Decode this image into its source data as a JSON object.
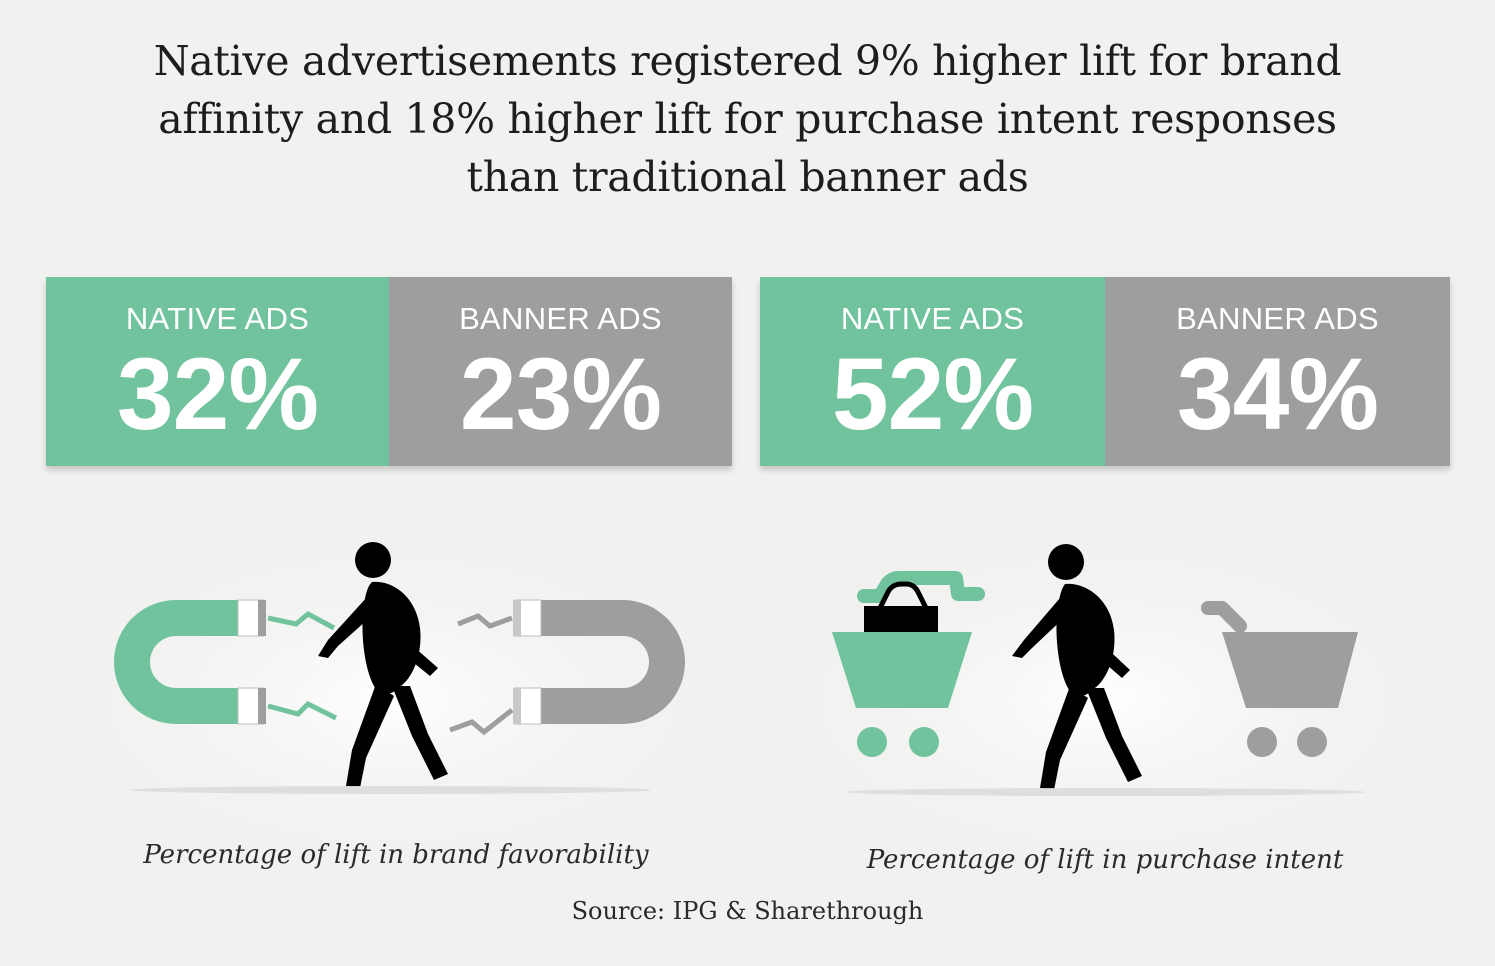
{
  "title": "Native advertisements registered 9% higher lift for brand affinity and 18% higher lift for purchase intent responses than traditional banner ads",
  "colors": {
    "native": "#71c39e",
    "banner": "#9d9e9e",
    "figure": "#000000"
  },
  "chart_data": [
    {
      "type": "table",
      "caption": "Percentage of lift in brand favorability",
      "categories": [
        "NATIVE ADS",
        "BANNER ADS"
      ],
      "values": [
        32,
        23
      ],
      "display": [
        "32%",
        "23%"
      ],
      "icon": "magnet-icon"
    },
    {
      "type": "table",
      "caption": "Percentage of lift in purchase intent",
      "categories": [
        "NATIVE ADS",
        "BANNER ADS"
      ],
      "values": [
        52,
        34
      ],
      "display": [
        "52%",
        "34%"
      ],
      "icon": "shopping-cart-icon"
    }
  ],
  "source": "Source: IPG & Sharethrough"
}
